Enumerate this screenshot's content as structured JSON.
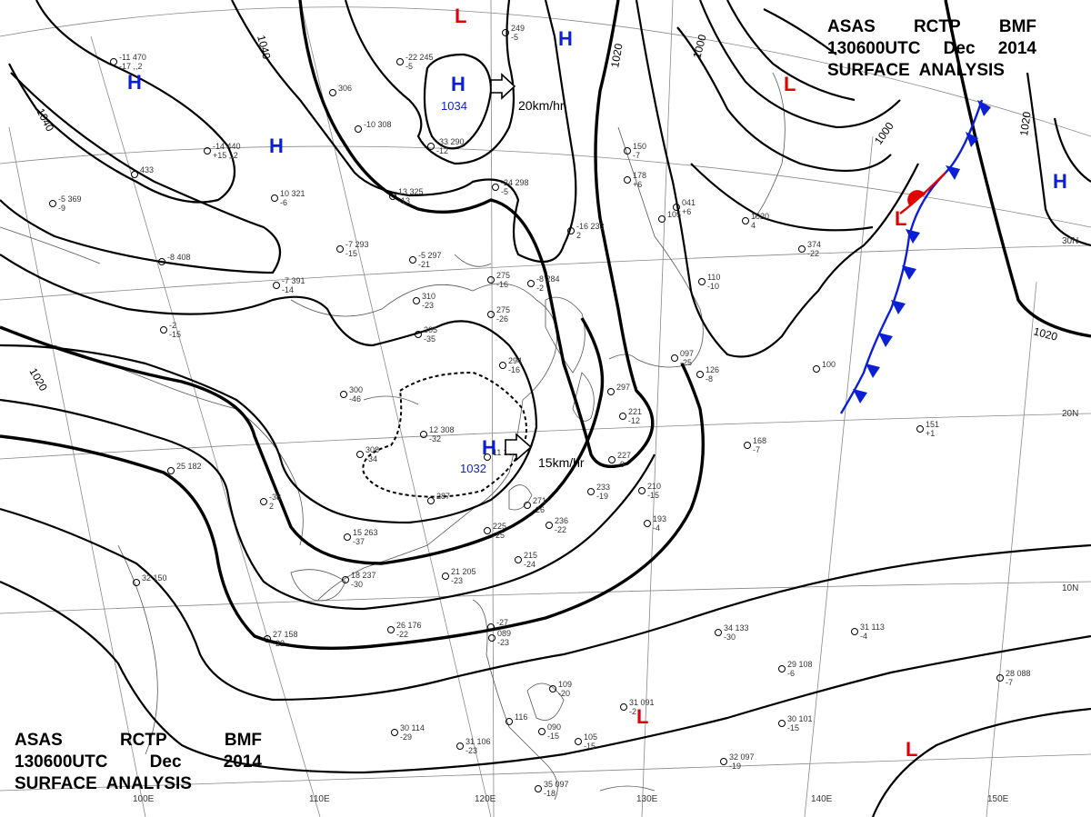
{
  "titles": {
    "top": {
      "line1": [
        "ASAS",
        "RCTP",
        "BMF"
      ],
      "line2": [
        "130600UTC",
        "Dec",
        "2014"
      ],
      "line3": "SURFACE  ANALYSIS"
    },
    "bottom": {
      "line1": [
        "ASAS",
        "RCTP",
        "BMF"
      ],
      "line2": [
        "130600UTC",
        "Dec",
        "2014"
      ],
      "line3": "SURFACE  ANALYSIS"
    }
  },
  "colors": {
    "high": "#0a1fd6",
    "low": "#e00000",
    "cold_front": "#0a1fd6",
    "warm_front": "#e00000",
    "isobar": "#000000"
  },
  "pressure_centers": [
    {
      "id": "high-mongolia-1",
      "type": "H",
      "value": ""
    },
    {
      "id": "high-mongolia-2",
      "type": "H",
      "value": ""
    },
    {
      "id": "high-north",
      "type": "H",
      "value": "1034"
    },
    {
      "id": "high-china",
      "type": "H",
      "value": "1032"
    },
    {
      "id": "high-ne",
      "type": "H",
      "value": ""
    },
    {
      "id": "high-east",
      "type": "H",
      "value": ""
    },
    {
      "id": "low-north",
      "type": "L",
      "value": ""
    },
    {
      "id": "low-kuril",
      "type": "L",
      "value": ""
    },
    {
      "id": "low-front",
      "type": "L",
      "value": ""
    },
    {
      "id": "low-phil",
      "type": "L",
      "value": ""
    },
    {
      "id": "low-pacific",
      "type": "L",
      "value": ""
    }
  ],
  "isobar_labels": [
    "1040",
    "1040",
    "1020",
    "1020",
    "1000",
    "1000",
    "1020",
    "1020"
  ],
  "motion_labels": {
    "north_high": "20km/hr",
    "china_high": "15km/hr"
  },
  "meridians": [
    "100E",
    "110E",
    "120E",
    "130E",
    "140E",
    "150E"
  ],
  "parallels": [
    "30N",
    "20N",
    "10N"
  ],
  "stations": [
    {
      "t": "-11 470",
      "d": "-17 ,,2"
    },
    {
      "t": "-14 440",
      "d": "+15 ,,2"
    },
    {
      "t": "433",
      "d": ""
    },
    {
      "t": "-5 369",
      "d": "-9"
    },
    {
      "t": "-8 408",
      "d": ""
    },
    {
      "t": "-22 245",
      "d": "-5"
    },
    {
      "t": "306",
      "d": ""
    },
    {
      "t": "-10 308",
      "d": ""
    },
    {
      "t": "-33 290",
      "d": "-12"
    },
    {
      "t": "249",
      "d": "-5"
    },
    {
      "t": "10 321",
      "d": "-6"
    },
    {
      "t": "13 325",
      "d": "-13"
    },
    {
      "t": "-24 298",
      "d": "-5"
    },
    {
      "t": "-7 293",
      "d": "-15"
    },
    {
      "t": "-5 297",
      "d": "-21"
    },
    {
      "t": "-7 391",
      "d": "-14"
    },
    {
      "t": "-16 233",
      "d": "2"
    },
    {
      "t": "275",
      "d": "-16"
    },
    {
      "t": "-8 284",
      "d": "-2"
    },
    {
      "t": "310",
      "d": "-23"
    },
    {
      "t": "275",
      "d": "-26"
    },
    {
      "t": "305",
      "d": "-35"
    },
    {
      "t": "-2",
      "d": "-15"
    },
    {
      "t": "300",
      "d": "-46"
    },
    {
      "t": "294",
      "d": "-16"
    },
    {
      "t": "12 308",
      "d": "-32"
    },
    {
      "t": "308",
      "d": "-34"
    },
    {
      "t": "11 306",
      "d": ""
    },
    {
      "t": "25 182",
      "d": ""
    },
    {
      "t": "-38",
      "d": "2"
    },
    {
      "t": "287",
      "d": ""
    },
    {
      "t": "271",
      "d": "-26"
    },
    {
      "t": "236",
      "d": "-22"
    },
    {
      "t": "225",
      "d": "-25"
    },
    {
      "t": "215",
      "d": "-24"
    },
    {
      "t": "15 263",
      "d": "-37"
    },
    {
      "t": "18 237",
      "d": "-30"
    },
    {
      "t": "21 205",
      "d": "-23"
    },
    {
      "t": "32 150",
      "d": ""
    },
    {
      "t": "26 176",
      "d": "-22"
    },
    {
      "t": "27 158",
      "d": "-22"
    },
    {
      "t": "233",
      "d": "-19"
    },
    {
      "t": "227",
      "d": "-9"
    },
    {
      "t": "210",
      "d": "-15"
    },
    {
      "t": "193",
      "d": "-4"
    },
    {
      "t": "297",
      "d": ""
    },
    {
      "t": "221",
      "d": "-12"
    },
    {
      "t": "150",
      "d": "-7"
    },
    {
      "t": "178",
      "d": "+6"
    },
    {
      "t": "105",
      "d": ""
    },
    {
      "t": "041",
      "d": "+6"
    },
    {
      "t": "1020",
      "d": "4"
    },
    {
      "t": "374",
      "d": "-22"
    },
    {
      "t": "110",
      "d": "-10"
    },
    {
      "t": "097",
      "d": "-25"
    },
    {
      "t": "126",
      "d": "-8"
    },
    {
      "t": "100",
      "d": ""
    },
    {
      "t": "151",
      "d": "+1"
    },
    {
      "t": "168",
      "d": "-7"
    },
    {
      "t": "34 133",
      "d": "-30"
    },
    {
      "t": "31 113",
      "d": "-4"
    },
    {
      "t": "29 108",
      "d": "-6"
    },
    {
      "t": "30 101",
      "d": "-15"
    },
    {
      "t": "28 088",
      "d": "-7"
    },
    {
      "t": "31 091",
      "d": "-2"
    },
    {
      "t": "109",
      "d": "-20"
    },
    {
      "t": "090",
      "d": "-15"
    },
    {
      "t": "105",
      "d": "-15"
    },
    {
      "t": "32 097",
      "d": "-19"
    },
    {
      "t": "35 097",
      "d": "-18"
    },
    {
      "t": "31 106",
      "d": "-23"
    },
    {
      "t": "30 114",
      "d": "-29"
    },
    {
      "t": "089",
      "d": "-23"
    },
    {
      "t": "-27",
      "d": ""
    },
    {
      "t": "116",
      "d": ""
    }
  ]
}
